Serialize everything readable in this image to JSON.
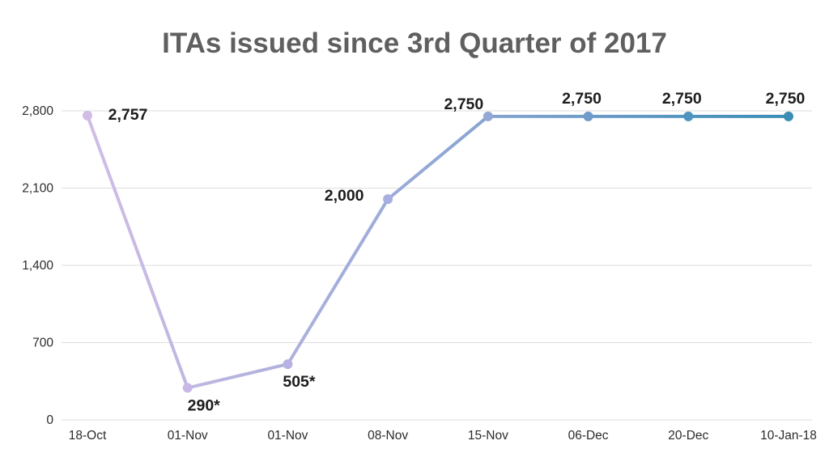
{
  "chart_data": {
    "type": "line",
    "title": "ITAs issued since 3rd Quarter of 2017",
    "xlabel": "",
    "ylabel": "",
    "categories": [
      "18-Oct",
      "01-Nov",
      "01-Nov",
      "08-Nov",
      "15-Nov",
      "06-Dec",
      "20-Dec",
      "10-Jan-18"
    ],
    "values": [
      2757,
      290,
      505,
      2000,
      2750,
      2750,
      2750,
      2750
    ],
    "data_labels": [
      "2,757",
      "290*",
      "505*",
      "2,000",
      "2,750",
      "2,750",
      "2,750",
      "2,750"
    ],
    "yticks": [
      0,
      700,
      1400,
      2100,
      2800
    ],
    "ytick_labels": [
      "0",
      "700",
      "1,400",
      "2,100",
      "2,800"
    ],
    "ylim": [
      0,
      2800
    ],
    "grid": true,
    "legend": "none",
    "point_colors": [
      "#d1bde6",
      "#c7b8e6",
      "#b8b2e3",
      "#a8aede",
      "#93a8d6",
      "#6f9cca",
      "#4e94bf",
      "#3a8db5"
    ]
  }
}
